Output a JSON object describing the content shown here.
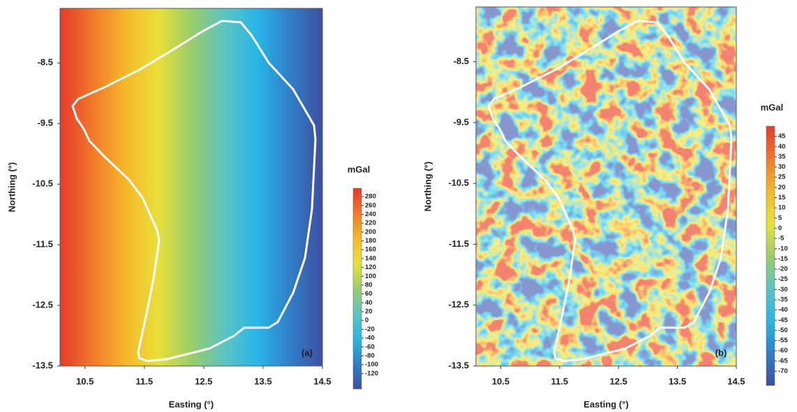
{
  "chart_data": [
    {
      "type": "heatmap",
      "panel_label": "(a)",
      "xlabel": "Easting (°)",
      "ylabel": "Northing (°)",
      "xlim": [
        10.08,
        14.5
      ],
      "ylim": [
        -13.5,
        -7.6
      ],
      "xticks": [
        10.5,
        11.5,
        12.5,
        13.5,
        14.5
      ],
      "yticks": [
        -8.5,
        -9.5,
        -10.5,
        -11.5,
        -12.5,
        -13.5
      ],
      "colorbar": {
        "label": "mGal",
        "lim": [
          -155,
          299
        ],
        "ticks": [
          280,
          260,
          240,
          220,
          200,
          180,
          160,
          140,
          120,
          100,
          80,
          60,
          40,
          20,
          0,
          -20,
          -40,
          -60,
          -80,
          -100,
          -120
        ]
      },
      "colormap": [
        "#3f4ea0",
        "#2f7fc8",
        "#29b6e8",
        "#5cc4c0",
        "#9acd6b",
        "#e8e03a",
        "#f5b82a",
        "#f2792a",
        "#e53a2a"
      ]
    },
    {
      "type": "heatmap",
      "panel_label": "(b)",
      "xlabel": "Easting (°)",
      "ylabel": "Northing (°)",
      "xlim": [
        10.08,
        14.5
      ],
      "ylim": [
        -13.5,
        -7.6
      ],
      "xticks": [
        10.5,
        11.5,
        12.5,
        13.5,
        14.5
      ],
      "yticks": [
        -8.5,
        -9.5,
        -10.5,
        -11.5,
        -12.5,
        -13.5
      ],
      "colorbar": {
        "label": "mGal",
        "lim": [
          -77,
          50
        ],
        "ticks": [
          45,
          40,
          35,
          30,
          25,
          20,
          15,
          10,
          5,
          0,
          -5,
          -10,
          -15,
          -20,
          -25,
          -30,
          -35,
          -40,
          -45,
          -50,
          -55,
          -60,
          -65,
          -70
        ]
      },
      "colormap": [
        "#3f4ea0",
        "#2f7fc8",
        "#29b6e8",
        "#5cc4c0",
        "#9acd6b",
        "#e8e03a",
        "#f5b82a",
        "#f2792a",
        "#e53a2a"
      ]
    }
  ]
}
